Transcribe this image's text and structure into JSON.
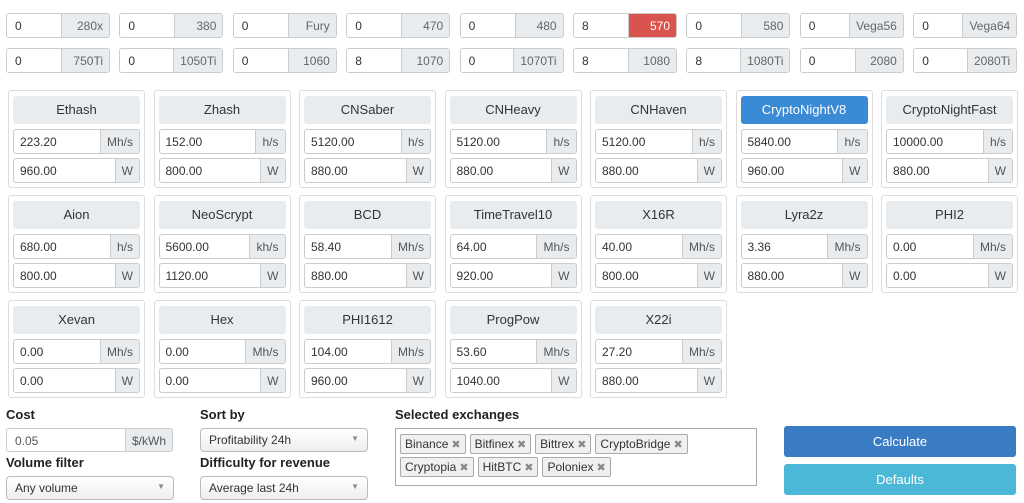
{
  "gpus": [
    {
      "count": "0",
      "name": "280x"
    },
    {
      "count": "0",
      "name": "380"
    },
    {
      "count": "0",
      "name": "Fury"
    },
    {
      "count": "0",
      "name": "470"
    },
    {
      "count": "0",
      "name": "480"
    },
    {
      "count": "8",
      "name": "570",
      "highlight": true
    },
    {
      "count": "0",
      "name": "580"
    },
    {
      "count": "0",
      "name": "Vega56"
    },
    {
      "count": "0",
      "name": "Vega64"
    },
    {
      "count": "0",
      "name": "750Ti"
    },
    {
      "count": "0",
      "name": "1050Ti"
    },
    {
      "count": "0",
      "name": "1060"
    },
    {
      "count": "8",
      "name": "1070"
    },
    {
      "count": "0",
      "name": "1070Ti"
    },
    {
      "count": "8",
      "name": "1080"
    },
    {
      "count": "8",
      "name": "1080Ti"
    },
    {
      "count": "0",
      "name": "2080"
    },
    {
      "count": "0",
      "name": "2080Ti"
    }
  ],
  "algorithms": [
    {
      "name": "Ethash",
      "hashrate": "223.20",
      "unit": "Mh/s",
      "power": "960.00",
      "power_unit": "W"
    },
    {
      "name": "Zhash",
      "hashrate": "152.00",
      "unit": "h/s",
      "power": "800.00",
      "power_unit": "W"
    },
    {
      "name": "CNSaber",
      "hashrate": "5120.00",
      "unit": "h/s",
      "power": "880.00",
      "power_unit": "W"
    },
    {
      "name": "CNHeavy",
      "hashrate": "5120.00",
      "unit": "h/s",
      "power": "880.00",
      "power_unit": "W"
    },
    {
      "name": "CNHaven",
      "hashrate": "5120.00",
      "unit": "h/s",
      "power": "880.00",
      "power_unit": "W"
    },
    {
      "name": "CryptoNightV8",
      "hashrate": "5840.00",
      "unit": "h/s",
      "power": "960.00",
      "power_unit": "W",
      "active": true
    },
    {
      "name": "CryptoNightFast",
      "hashrate": "10000.00",
      "unit": "h/s",
      "power": "880.00",
      "power_unit": "W"
    },
    {
      "name": "Aion",
      "hashrate": "680.00",
      "unit": "h/s",
      "power": "800.00",
      "power_unit": "W"
    },
    {
      "name": "NeoScrypt",
      "hashrate": "5600.00",
      "unit": "kh/s",
      "power": "1120.00",
      "power_unit": "W"
    },
    {
      "name": "BCD",
      "hashrate": "58.40",
      "unit": "Mh/s",
      "power": "880.00",
      "power_unit": "W"
    },
    {
      "name": "TimeTravel10",
      "hashrate": "64.00",
      "unit": "Mh/s",
      "power": "920.00",
      "power_unit": "W"
    },
    {
      "name": "X16R",
      "hashrate": "40.00",
      "unit": "Mh/s",
      "power": "800.00",
      "power_unit": "W"
    },
    {
      "name": "Lyra2z",
      "hashrate": "3.36",
      "unit": "Mh/s",
      "power": "880.00",
      "power_unit": "W"
    },
    {
      "name": "PHI2",
      "hashrate": "0.00",
      "unit": "Mh/s",
      "power": "0.00",
      "power_unit": "W"
    },
    {
      "name": "Xevan",
      "hashrate": "0.00",
      "unit": "Mh/s",
      "power": "0.00",
      "power_unit": "W"
    },
    {
      "name": "Hex",
      "hashrate": "0.00",
      "unit": "Mh/s",
      "power": "0.00",
      "power_unit": "W"
    },
    {
      "name": "PHI1612",
      "hashrate": "104.00",
      "unit": "Mh/s",
      "power": "960.00",
      "power_unit": "W"
    },
    {
      "name": "ProgPow",
      "hashrate": "53.60",
      "unit": "Mh/s",
      "power": "1040.00",
      "power_unit": "W"
    },
    {
      "name": "X22i",
      "hashrate": "27.20",
      "unit": "Mh/s",
      "power": "880.00",
      "power_unit": "W"
    }
  ],
  "cost": {
    "label": "Cost",
    "value": "0.05",
    "unit": "$/kWh"
  },
  "volume": {
    "label": "Volume filter",
    "value": "Any volume"
  },
  "sort": {
    "label": "Sort by",
    "value": "Profitability 24h"
  },
  "difficulty": {
    "label": "Difficulty for revenue",
    "value": "Average last 24h"
  },
  "exchanges": {
    "label": "Selected exchanges",
    "items": [
      "Binance",
      "Bitfinex",
      "Bittrex",
      "CryptoBridge",
      "Cryptopia",
      "HitBTC",
      "Poloniex"
    ]
  },
  "buttons": {
    "calculate": "Calculate",
    "defaults": "Defaults"
  },
  "colors": {
    "primary": "#3a7cc4",
    "info": "#4cb8d8",
    "highlight": "#d9534f",
    "active": "#3a8ad6"
  }
}
